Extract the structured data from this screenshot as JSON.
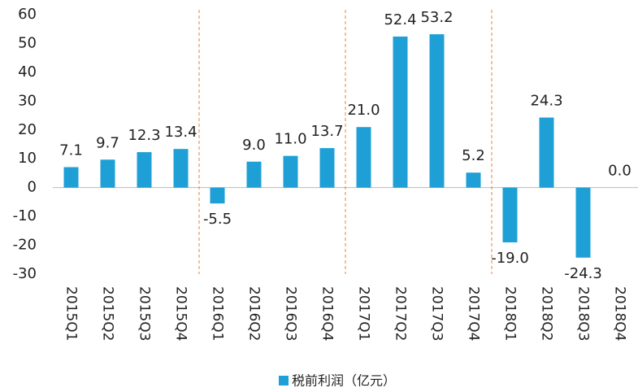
{
  "chart_data": {
    "type": "bar",
    "categories": [
      "2015Q1",
      "2015Q2",
      "2015Q3",
      "2015Q4",
      "2016Q1",
      "2016Q2",
      "2016Q3",
      "2016Q4",
      "2017Q1",
      "2017Q2",
      "2017Q3",
      "2017Q4",
      "2018Q1",
      "2018Q2",
      "2018Q3",
      "2018Q4"
    ],
    "series": [
      {
        "name": "税前利润（亿元）",
        "color": "#1ea0d7",
        "values": [
          7.1,
          9.7,
          12.3,
          13.4,
          -5.5,
          9.0,
          11.0,
          13.7,
          21.0,
          52.4,
          53.2,
          5.2,
          -19.0,
          24.3,
          -24.3,
          0.0
        ],
        "value_labels": [
          "7.1",
          "9.7",
          "12.3",
          "13.4",
          "-5.5",
          "9.0",
          "11.0",
          "13.7",
          "21.0",
          "52.4",
          "53.2",
          "5.2",
          "-19.0",
          "24.3",
          "-24.3",
          "0.0"
        ]
      }
    ],
    "ylim": [
      -30,
      60
    ],
    "yticks": [
      -30,
      -20,
      -10,
      0,
      10,
      20,
      30,
      40,
      50,
      60
    ],
    "grid": false,
    "legend": "bottom"
  }
}
